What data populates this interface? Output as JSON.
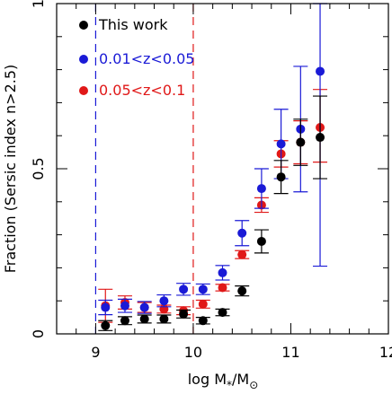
{
  "chart_data": {
    "type": "scatter",
    "title": "",
    "xlabel": "log M",
    "xlabel_sub1": "*",
    "xlabel_slash": "/M",
    "xlabel_sub2": "⊙",
    "ylabel": "Fraction (Sersic index n>2.5)",
    "xlim": [
      8.6,
      12
    ],
    "ylim": [
      0,
      1
    ],
    "x_ticks": [
      9,
      10,
      11,
      12
    ],
    "x_tick_labels": [
      "9",
      "10",
      "11",
      "12"
    ],
    "y_ticks": [
      0,
      0.5,
      1
    ],
    "y_tick_labels": [
      "0",
      "0.5",
      "1"
    ],
    "grid": false,
    "legend_position": "top-left",
    "vertical_lines": [
      {
        "x": 9.0,
        "color": "#1a1ad6",
        "style": "dashed"
      },
      {
        "x": 10.0,
        "color": "#e01818",
        "style": "dashed"
      }
    ],
    "series": [
      {
        "name": "This work",
        "color": "#000000",
        "x": [
          9.1,
          9.3,
          9.5,
          9.7,
          9.9,
          10.1,
          10.3,
          10.5,
          10.7,
          10.9,
          11.1,
          11.3
        ],
        "y": [
          0.025,
          0.04,
          0.045,
          0.045,
          0.06,
          0.04,
          0.065,
          0.13,
          0.28,
          0.475,
          0.58,
          0.595
        ],
        "err_low": [
          0.015,
          0.012,
          0.012,
          0.012,
          0.012,
          0.01,
          0.01,
          0.015,
          0.035,
          0.05,
          0.07,
          0.125
        ],
        "err_high": [
          0.015,
          0.012,
          0.012,
          0.012,
          0.012,
          0.01,
          0.01,
          0.015,
          0.035,
          0.05,
          0.07,
          0.125
        ]
      },
      {
        "name": "0.01<z<0.05",
        "color": "#1a1ad6",
        "x": [
          9.1,
          9.3,
          9.5,
          9.7,
          9.9,
          10.1,
          10.3,
          10.5,
          10.7,
          10.9,
          11.1,
          11.3
        ],
        "y": [
          0.08,
          0.085,
          0.08,
          0.1,
          0.135,
          0.135,
          0.185,
          0.305,
          0.44,
          0.575,
          0.62,
          0.795
        ],
        "err_low": [
          0.022,
          0.02,
          0.018,
          0.018,
          0.018,
          0.016,
          0.022,
          0.038,
          0.06,
          0.105,
          0.19,
          0.59
        ],
        "err_high": [
          0.022,
          0.02,
          0.018,
          0.018,
          0.018,
          0.016,
          0.022,
          0.038,
          0.06,
          0.105,
          0.19,
          0.21
        ]
      },
      {
        "name": "0.05<z<0.1",
        "color": "#e01818",
        "x": [
          9.1,
          9.3,
          9.5,
          9.7,
          9.9,
          10.1,
          10.3,
          10.5,
          10.7,
          10.9,
          11.1,
          11.3
        ],
        "y": [
          0.085,
          0.095,
          0.08,
          0.075,
          0.07,
          0.09,
          0.14,
          0.24,
          0.39,
          0.545,
          0.58,
          0.625
        ],
        "err_low": [
          0.05,
          0.02,
          0.015,
          0.012,
          0.012,
          0.012,
          0.01,
          0.012,
          0.022,
          0.04,
          0.065,
          0.105
        ],
        "err_high": [
          0.05,
          0.02,
          0.015,
          0.012,
          0.012,
          0.012,
          0.01,
          0.012,
          0.022,
          0.04,
          0.065,
          0.115
        ]
      }
    ]
  }
}
